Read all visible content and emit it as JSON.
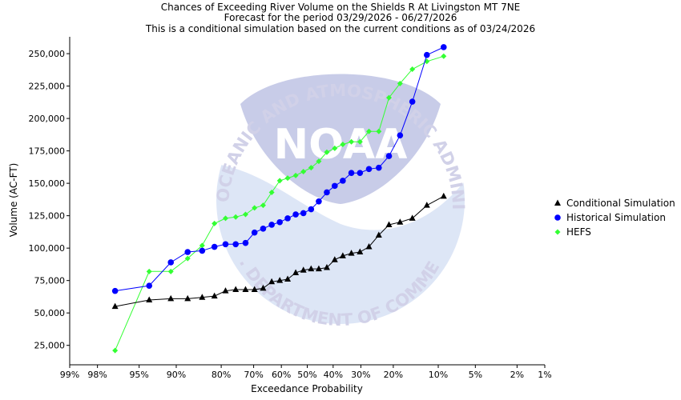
{
  "chart_data": {
    "type": "line",
    "title_lines": [
      "Chances of Exceeding River Volume on the Shields R At Livingston MT 7NE",
      "Forecast for the period 03/29/2026 - 06/27/2026",
      "This is a conditional simulation based on the current conditions as of 03/24/2026"
    ],
    "xlabel": "Exceedance Probability",
    "ylabel": "Volume (AC-FT)",
    "x_ticks": [
      {
        "p": 99,
        "label": "99%"
      },
      {
        "p": 98,
        "label": "98%"
      },
      {
        "p": 95,
        "label": "95%"
      },
      {
        "p": 90,
        "label": "90%"
      },
      {
        "p": 80,
        "label": "80%"
      },
      {
        "p": 70,
        "label": "70%"
      },
      {
        "p": 60,
        "label": "60%"
      },
      {
        "p": 50,
        "label": "50%"
      },
      {
        "p": 40,
        "label": "40%"
      },
      {
        "p": 30,
        "label": "30%"
      },
      {
        "p": 20,
        "label": "20%"
      },
      {
        "p": 10,
        "label": "10%"
      },
      {
        "p": 5,
        "label": "5%"
      },
      {
        "p": 2,
        "label": "2%"
      },
      {
        "p": 1,
        "label": "1%"
      }
    ],
    "y_ticks": [
      {
        "v": 25000,
        "label": "25,000"
      },
      {
        "v": 50000,
        "label": "50,000"
      },
      {
        "v": 75000,
        "label": "75,000"
      },
      {
        "v": 100000,
        "label": "100,000"
      },
      {
        "v": 125000,
        "label": "125,000"
      },
      {
        "v": 150000,
        "label": "150,000"
      },
      {
        "v": 175000,
        "label": "175,000"
      },
      {
        "v": 200000,
        "label": "200,000"
      },
      {
        "v": 225000,
        "label": "225,000"
      },
      {
        "v": 250000,
        "label": "250,000"
      }
    ],
    "ylim": [
      10000,
      263000
    ],
    "xlim_percent": [
      99,
      1
    ],
    "x_scale": "normal-probability",
    "grid": false,
    "legend_position": "right",
    "series": [
      {
        "name": "Conditional Simulation",
        "color": "#000000",
        "marker": "triangle",
        "points": [
          [
            97,
            55000
          ],
          [
            93.9,
            60000
          ],
          [
            90.9,
            61000
          ],
          [
            87.9,
            61000
          ],
          [
            84.8,
            62000
          ],
          [
            81.8,
            63000
          ],
          [
            78.8,
            67000
          ],
          [
            75.8,
            68000
          ],
          [
            72.7,
            68000
          ],
          [
            69.7,
            68000
          ],
          [
            66.7,
            69000
          ],
          [
            63.6,
            74000
          ],
          [
            60.6,
            75000
          ],
          [
            57.6,
            76000
          ],
          [
            54.5,
            81000
          ],
          [
            51.5,
            83000
          ],
          [
            48.5,
            84000
          ],
          [
            45.5,
            84000
          ],
          [
            42.4,
            85000
          ],
          [
            39.4,
            91000
          ],
          [
            36.4,
            94000
          ],
          [
            33.3,
            96000
          ],
          [
            30.3,
            97000
          ],
          [
            27.3,
            101000
          ],
          [
            24.2,
            110000
          ],
          [
            21.2,
            118000
          ],
          [
            18.2,
            120000
          ],
          [
            15.2,
            123000
          ],
          [
            12.1,
            133000
          ],
          [
            9.1,
            140000
          ]
        ]
      },
      {
        "name": "Historical Simulation",
        "color": "#0000ff",
        "marker": "circle",
        "points": [
          [
            97,
            67000
          ],
          [
            93.9,
            71000
          ],
          [
            90.9,
            89000
          ],
          [
            87.9,
            97000
          ],
          [
            84.8,
            98000
          ],
          [
            81.8,
            101000
          ],
          [
            78.8,
            103000
          ],
          [
            75.8,
            103000
          ],
          [
            72.7,
            104000
          ],
          [
            69.7,
            112000
          ],
          [
            66.7,
            115000
          ],
          [
            63.6,
            118000
          ],
          [
            60.6,
            120000
          ],
          [
            57.6,
            123000
          ],
          [
            54.5,
            126000
          ],
          [
            51.5,
            127000
          ],
          [
            48.5,
            130000
          ],
          [
            45.5,
            136000
          ],
          [
            42.4,
            143000
          ],
          [
            39.4,
            148000
          ],
          [
            36.4,
            152000
          ],
          [
            33.3,
            158000
          ],
          [
            30.3,
            158000
          ],
          [
            27.3,
            161000
          ],
          [
            24.2,
            162000
          ],
          [
            21.2,
            171000
          ],
          [
            18.2,
            187000
          ],
          [
            15.2,
            213000
          ],
          [
            12.1,
            249000
          ],
          [
            9.1,
            255000
          ]
        ]
      },
      {
        "name": "HEFS",
        "color": "#33ff33",
        "marker": "diamond",
        "points": [
          [
            97,
            21000
          ],
          [
            93.9,
            82000
          ],
          [
            90.9,
            82000
          ],
          [
            87.9,
            92000
          ],
          [
            84.8,
            102000
          ],
          [
            81.8,
            119000
          ],
          [
            78.8,
            123000
          ],
          [
            75.8,
            124000
          ],
          [
            72.7,
            126000
          ],
          [
            69.7,
            131000
          ],
          [
            66.7,
            133000
          ],
          [
            63.6,
            143000
          ],
          [
            60.6,
            152000
          ],
          [
            57.6,
            154000
          ],
          [
            54.5,
            156000
          ],
          [
            51.5,
            159000
          ],
          [
            48.5,
            162000
          ],
          [
            45.5,
            167000
          ],
          [
            42.4,
            174000
          ],
          [
            39.4,
            177000
          ],
          [
            36.4,
            180000
          ],
          [
            33.3,
            182000
          ],
          [
            30.3,
            182000
          ],
          [
            27.3,
            190000
          ],
          [
            24.2,
            190000
          ],
          [
            21.2,
            216000
          ],
          [
            18.2,
            227000
          ],
          [
            15.2,
            238000
          ],
          [
            12.1,
            244000
          ],
          [
            9.1,
            248000
          ]
        ]
      }
    ]
  },
  "watermark": {
    "top_text": "NATIONAL OCEANIC AND ATMOSPHERIC ADMINISTRATION",
    "bottom_text": "U.S. DEPARTMENT OF COMMERCE",
    "center_text": "NOAA"
  }
}
